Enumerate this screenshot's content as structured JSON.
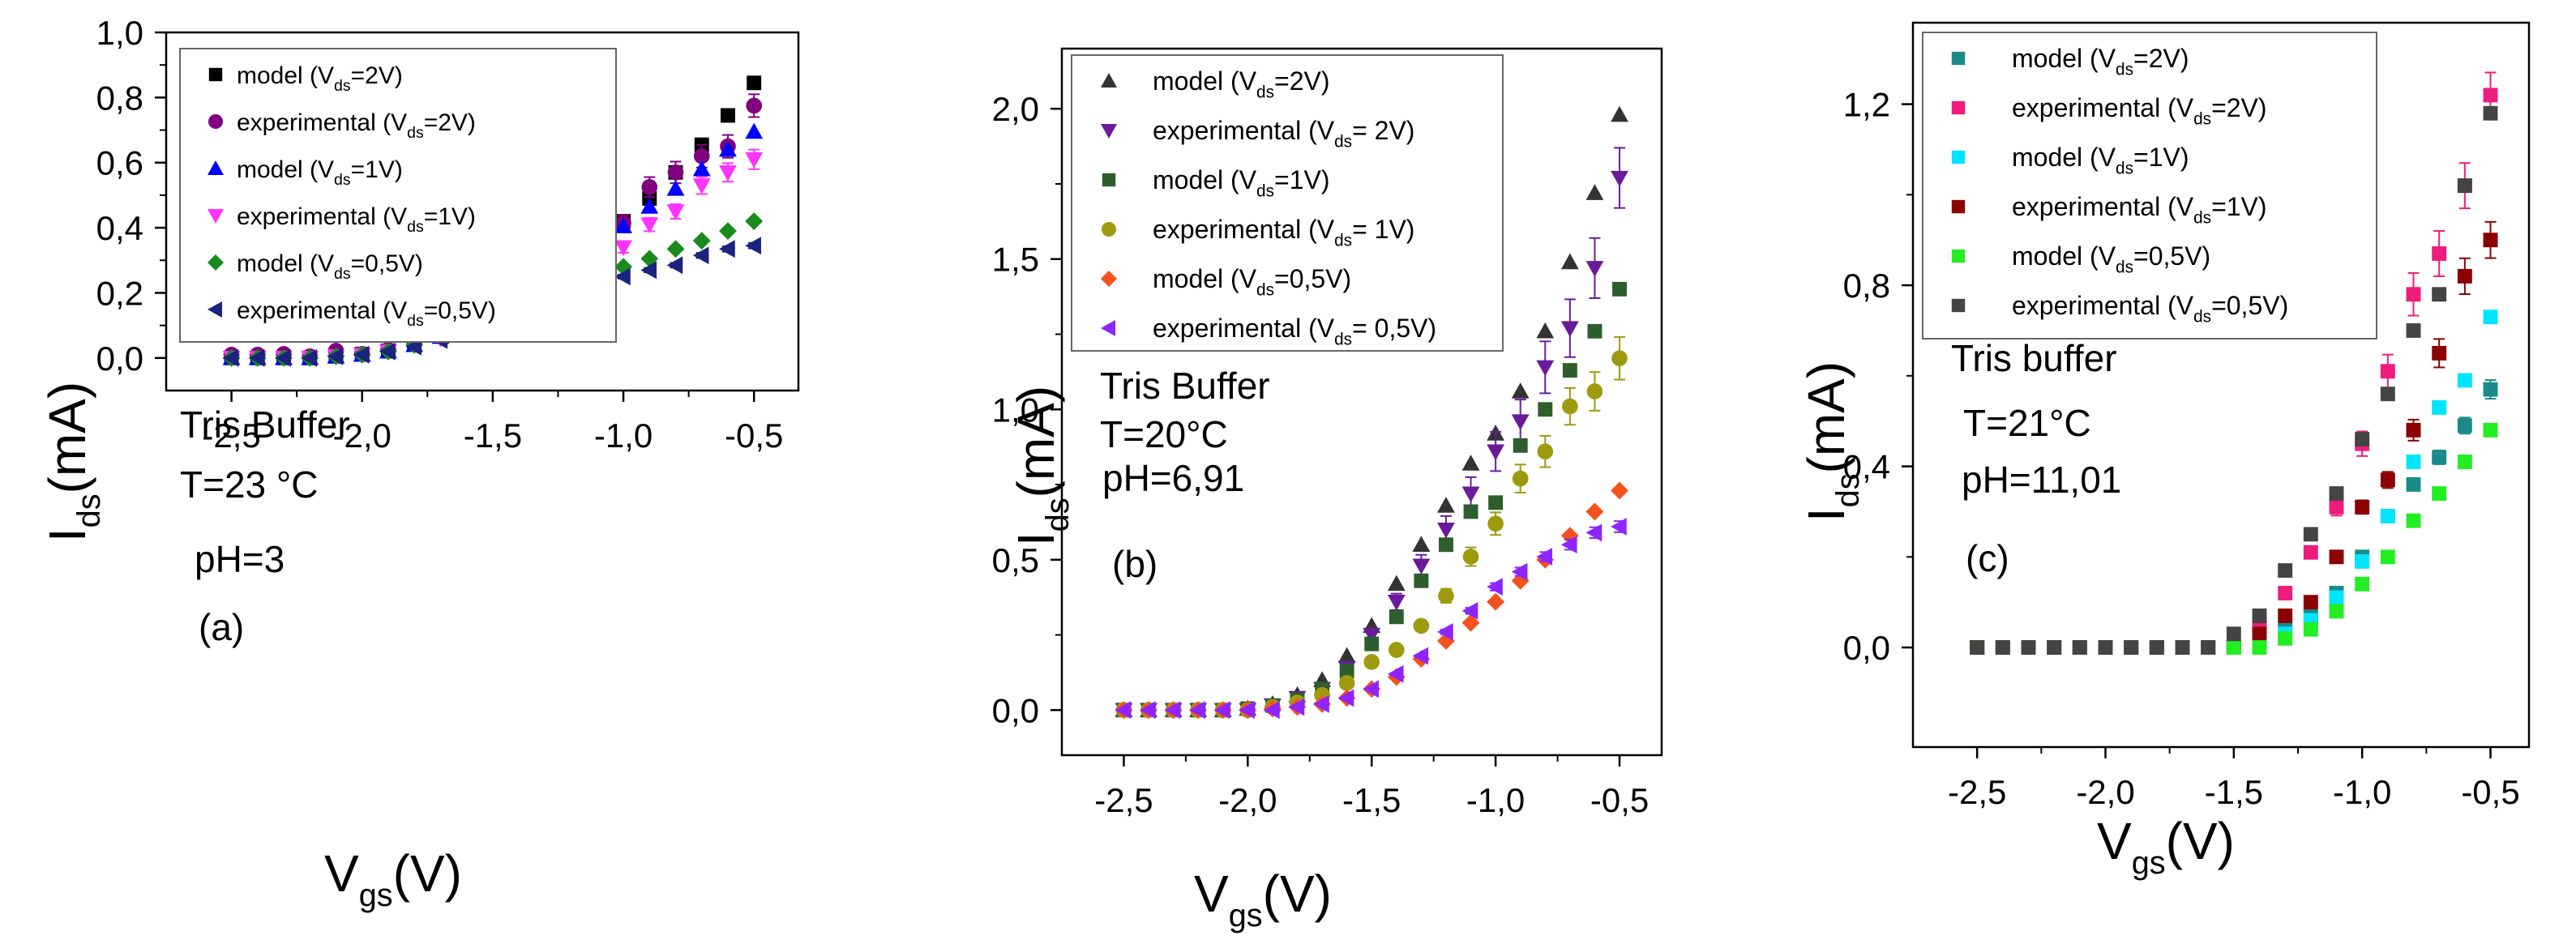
{
  "chart_data": [
    {
      "type": "scatter",
      "panel_label": "(a)",
      "annotations": [
        "Tris Buffer",
        "T=23 °C",
        "pH=3"
      ],
      "xlabel": {
        "main": "V",
        "sub": "gs",
        "rest": "(V)"
      },
      "ylabel": {
        "main": "I",
        "sub": "ds",
        "rest": "(mA)"
      },
      "xlim": [
        -2.75,
        -0.33
      ],
      "ylim": [
        -0.1,
        1.0
      ],
      "xticks": [
        -2.5,
        -2.0,
        -1.5,
        -1.0,
        -0.5
      ],
      "xticklabels": [
        "-2,5",
        "-2,0",
        "-1,5",
        "-1,0",
        "-0,5"
      ],
      "yticks": [
        0.0,
        0.2,
        0.4,
        0.6,
        0.8,
        1.0
      ],
      "yticklabels": [
        "0,0",
        "0,2",
        "0,4",
        "0,6",
        "0,8",
        "1,0"
      ],
      "x": [
        -2.5,
        -2.4,
        -2.3,
        -2.2,
        -2.1,
        -2.0,
        -1.9,
        -1.8,
        -1.7,
        -1.6,
        -1.5,
        -1.4,
        -1.3,
        -1.2,
        -1.1,
        -1.0,
        -0.9,
        -0.8,
        -0.7,
        -0.6,
        -0.5
      ],
      "series": [
        {
          "name": "model (Vds=2V)",
          "legend": {
            "pre": "model (V",
            "sub": "ds",
            "post": "=2V)"
          },
          "color": "#000000",
          "marker": "square",
          "values": [
            0.0,
            0.0,
            0.0,
            0.0,
            0.005,
            0.012,
            0.022,
            0.045,
            0.07,
            0.1,
            0.14,
            0.18,
            0.23,
            0.29,
            0.35,
            0.42,
            0.49,
            0.57,
            0.655,
            0.745,
            0.845
          ]
        },
        {
          "name": "experimental (Vds=2V)",
          "legend": {
            "pre": "experimental (V",
            "sub": "ds",
            "post": "=2V)"
          },
          "color": "#800080",
          "marker": "circle",
          "values": [
            0.01,
            0.01,
            0.012,
            0.005,
            0.022,
            0.012,
            0.025,
            0.045,
            0.108,
            0.1,
            0.168,
            0.185,
            0.258,
            0.29,
            0.405,
            0.415,
            0.525,
            0.57,
            0.62,
            0.65,
            0.775
          ],
          "error": 0.035
        },
        {
          "name": "model (Vds=1V)",
          "legend": {
            "pre": "model (V",
            "sub": "ds",
            "post": "=1V)"
          },
          "color": "#0000ff",
          "marker": "triangle-up",
          "values": [
            0.0,
            0.0,
            0.0,
            0.0,
            0.005,
            0.01,
            0.02,
            0.04,
            0.065,
            0.1,
            0.14,
            0.18,
            0.23,
            0.29,
            0.34,
            0.405,
            0.465,
            0.52,
            0.58,
            0.64,
            0.695
          ]
        },
        {
          "name": "experimental (Vds=1V)",
          "legend": {
            "pre": "experimental (V",
            "sub": "ds",
            "post": "=1V)"
          },
          "color": "#ff33ff",
          "marker": "triangle-down",
          "values": [
            0.0,
            0.0,
            0.0,
            0.0,
            0.005,
            0.01,
            0.02,
            0.04,
            0.06,
            0.1,
            0.13,
            0.16,
            0.21,
            0.25,
            0.31,
            0.34,
            0.41,
            0.45,
            0.53,
            0.57,
            0.61
          ],
          "error": 0.03
        },
        {
          "name": "model (Vds=0,5V)",
          "legend": {
            "pre": "model (V",
            "sub": "ds",
            "post": "=0,5V)"
          },
          "color": "#1a8a1a",
          "marker": "diamond",
          "values": [
            0.0,
            0.0,
            0.0,
            0.0,
            0.005,
            0.01,
            0.02,
            0.04,
            0.07,
            0.1,
            0.13,
            0.16,
            0.19,
            0.22,
            0.25,
            0.28,
            0.305,
            0.335,
            0.36,
            0.39,
            0.42
          ]
        },
        {
          "name": "experimental (Vds=0,5V)",
          "legend": {
            "pre": "experimental (V",
            "sub": "ds",
            "post": "=0,5V)"
          },
          "color": "#1a237e",
          "marker": "triangle-left",
          "values": [
            0.0,
            0.0,
            0.0,
            0.0,
            0.005,
            0.01,
            0.02,
            0.035,
            0.055,
            0.085,
            0.105,
            0.14,
            0.185,
            0.215,
            0.235,
            0.25,
            0.27,
            0.285,
            0.315,
            0.335,
            0.345
          ],
          "error": 0.015
        }
      ]
    },
    {
      "type": "scatter",
      "panel_label": "(b)",
      "annotations": [
        "Tris Buffer",
        "T=20°C",
        "pH=6,91"
      ],
      "xlabel": {
        "main": "V",
        "sub": "gs",
        "rest": "(V)"
      },
      "ylabel": {
        "main": "I",
        "sub": "ds",
        "rest": "(mA)"
      },
      "xlim": [
        -2.75,
        -0.33
      ],
      "ylim": [
        -0.15,
        2.2
      ],
      "xticks": [
        -2.5,
        -2.0,
        -1.5,
        -1.0,
        -0.5
      ],
      "xticklabels": [
        "-2,5",
        "-2,0",
        "-1,5",
        "-1,0",
        "-0,5"
      ],
      "yticks": [
        0.0,
        0.5,
        1.0,
        1.5,
        2.0
      ],
      "yticklabels": [
        "0,0",
        "0,5",
        "1,0",
        "1,5",
        "2,0"
      ],
      "x": [
        -2.5,
        -2.4,
        -2.3,
        -2.2,
        -2.1,
        -2.0,
        -1.9,
        -1.8,
        -1.7,
        -1.6,
        -1.5,
        -1.4,
        -1.3,
        -1.2,
        -1.1,
        -1.0,
        -0.9,
        -0.8,
        -0.7,
        -0.6,
        -0.5
      ],
      "series": [
        {
          "name": "model (Vds=2V)",
          "legend": {
            "pre": "model (V",
            "sub": "ds",
            "post": "=2V)"
          },
          "color": "#333333",
          "marker": "triangle-up",
          "values": [
            0.0,
            0.0,
            0.0,
            0.0,
            0.0,
            0.005,
            0.02,
            0.05,
            0.1,
            0.18,
            0.28,
            0.42,
            0.55,
            0.68,
            0.82,
            0.92,
            1.06,
            1.26,
            1.49,
            1.72,
            1.98
          ]
        },
        {
          "name": "experimental (Vds= 2V)",
          "legend": {
            "pre": "experimental (V",
            "sub": "ds",
            "post": "= 2V)"
          },
          "color": "#6a1b9a",
          "marker": "triangle-down",
          "values": [
            0.0,
            0.0,
            0.0,
            0.0,
            0.0,
            0.0,
            0.015,
            0.04,
            0.07,
            0.14,
            0.25,
            0.36,
            0.48,
            0.6,
            0.72,
            0.86,
            0.96,
            1.14,
            1.27,
            1.47,
            1.77
          ],
          "error": 0.1
        },
        {
          "name": "model (Vds=1V)",
          "legend": {
            "pre": "model (V",
            "sub": "ds",
            "post": "=1V)"
          },
          "color": "#2e5e2e",
          "marker": "square",
          "values": [
            0.0,
            0.0,
            0.0,
            0.0,
            0.0,
            0.005,
            0.015,
            0.035,
            0.07,
            0.13,
            0.22,
            0.31,
            0.43,
            0.55,
            0.66,
            0.69,
            0.88,
            1.0,
            1.13,
            1.26,
            1.4
          ]
        },
        {
          "name": "experimental (Vds= 1V)",
          "legend": {
            "pre": "experimental (V",
            "sub": "ds",
            "post": "= 1V)"
          },
          "color": "#9e9a10",
          "marker": "circle",
          "values": [
            0.0,
            0.0,
            0.0,
            0.0,
            0.0,
            0.0,
            0.01,
            0.025,
            0.05,
            0.09,
            0.16,
            0.2,
            0.28,
            0.38,
            0.51,
            0.62,
            0.77,
            0.86,
            1.01,
            1.06,
            1.17
          ],
          "error": 0.08
        },
        {
          "name": "model (Vds=0,5V)",
          "legend": {
            "pre": "model (V",
            "sub": "ds",
            "post": "=0,5V)"
          },
          "color": "#f4511e",
          "marker": "diamond",
          "values": [
            0.0,
            0.0,
            0.0,
            0.0,
            0.0,
            0.0,
            0.005,
            0.01,
            0.02,
            0.04,
            0.07,
            0.11,
            0.17,
            0.23,
            0.29,
            0.36,
            0.43,
            0.5,
            0.58,
            0.66,
            0.73
          ]
        },
        {
          "name": "experimental (Vds= 0,5V)",
          "legend": {
            "pre": "experimental (V",
            "sub": "ds",
            "post": "= 0,5V)"
          },
          "color": "#8e24ff",
          "marker": "triangle-left",
          "values": [
            0.0,
            0.0,
            0.0,
            0.0,
            0.0,
            0.0,
            0.0,
            0.01,
            0.02,
            0.04,
            0.07,
            0.12,
            0.18,
            0.26,
            0.33,
            0.41,
            0.46,
            0.51,
            0.55,
            0.59,
            0.61
          ],
          "error": 0.04
        }
      ]
    },
    {
      "type": "scatter",
      "panel_label": "(c)",
      "annotations": [
        "Tris buffer",
        "T=21°C",
        "pH=11,01"
      ],
      "xlabel": {
        "main": "V",
        "sub": "gs",
        "rest": "(V)"
      },
      "ylabel": {
        "main": "I",
        "sub": "ds",
        "rest": "(mA)"
      },
      "xlim": [
        -2.75,
        -0.35
      ],
      "ylim": [
        -0.22,
        1.38
      ],
      "xticks": [
        -2.5,
        -2.0,
        -1.5,
        -1.0,
        -0.5
      ],
      "xticklabels": [
        "-2,5",
        "-2,0",
        "-1,5",
        "-1,0",
        "-0,5"
      ],
      "yticks": [
        0.0,
        0.4,
        0.8,
        1.2
      ],
      "yticklabels": [
        "0,0",
        "0,4",
        "0,8",
        "1,2"
      ],
      "x": [
        -2.5,
        -2.4,
        -2.3,
        -2.2,
        -2.1,
        -2.0,
        -1.9,
        -1.8,
        -1.7,
        -1.6,
        -1.5,
        -1.4,
        -1.3,
        -1.2,
        -1.1,
        -1.0,
        -0.9,
        -0.8,
        -0.7,
        -0.6,
        -0.5
      ],
      "series": [
        {
          "name": "model (Vds=2V)",
          "legend": {
            "pre": "model (V",
            "sub": "ds",
            "post": "=2V)"
          },
          "color": "#1a8a8a",
          "marker": "square",
          "values": [
            0.0,
            0.0,
            0.0,
            0.0,
            0.0,
            0.0,
            0.0,
            0.0,
            0.0,
            0.0,
            0.0,
            0.01,
            0.04,
            0.07,
            0.12,
            0.2,
            0.29,
            0.36,
            0.42,
            0.49,
            0.57
          ],
          "error": 0.03
        },
        {
          "name": "experimental (Vds=2V)",
          "legend": {
            "pre": "experimental (V",
            "sub": "ds",
            "post": "=2V)"
          },
          "color": "#ee1c7c",
          "marker": "square",
          "values": [
            0.0,
            0.0,
            0.0,
            0.0,
            0.0,
            0.0,
            0.0,
            0.0,
            0.0,
            0.0,
            0.0,
            0.05,
            0.12,
            0.21,
            0.31,
            0.45,
            0.61,
            0.78,
            0.87,
            1.02,
            1.22
          ],
          "error": 0.05
        },
        {
          "name": "model (Vds=1V)",
          "legend": {
            "pre": "model (V",
            "sub": "ds",
            "post": "=1V)"
          },
          "color": "#00e5ff",
          "marker": "square",
          "values": [
            0.0,
            0.0,
            0.0,
            0.0,
            0.0,
            0.0,
            0.0,
            0.0,
            0.0,
            0.0,
            0.0,
            0.01,
            0.03,
            0.06,
            0.11,
            0.19,
            0.29,
            0.41,
            0.53,
            0.59,
            0.73
          ]
        },
        {
          "name": "experimental (Vds=1V)",
          "legend": {
            "pre": "experimental (V",
            "sub": "ds",
            "post": "=1V)"
          },
          "color": "#8b0000",
          "marker": "square",
          "values": [
            0.0,
            0.0,
            0.0,
            0.0,
            0.0,
            0.0,
            0.0,
            0.0,
            0.0,
            0.0,
            0.0,
            0.03,
            0.07,
            0.1,
            0.2,
            0.31,
            0.37,
            0.48,
            0.65,
            0.82,
            0.9
          ],
          "error": 0.04
        },
        {
          "name": "model (Vds=0,5V)",
          "legend": {
            "pre": "model (V",
            "sub": "ds",
            "post": "=0,5V)"
          },
          "color": "#22ee22",
          "marker": "square",
          "values": [
            0.0,
            0.0,
            0.0,
            0.0,
            0.0,
            0.0,
            0.0,
            0.0,
            0.0,
            0.0,
            0.0,
            0.0,
            0.02,
            0.04,
            0.08,
            0.14,
            0.2,
            0.28,
            0.34,
            0.41,
            0.48
          ]
        },
        {
          "name": "experimental (Vds=0,5V)",
          "legend": {
            "pre": "experimental (V",
            "sub": "ds",
            "post": "=0,5V)"
          },
          "color": "#444444",
          "marker": "square",
          "values": [
            0.0,
            0.0,
            0.0,
            0.0,
            0.0,
            0.0,
            0.0,
            0.0,
            0.0,
            0.0,
            0.03,
            0.07,
            0.17,
            0.25,
            0.34,
            0.46,
            0.56,
            0.7,
            0.78,
            1.02,
            1.18
          ]
        }
      ]
    }
  ]
}
